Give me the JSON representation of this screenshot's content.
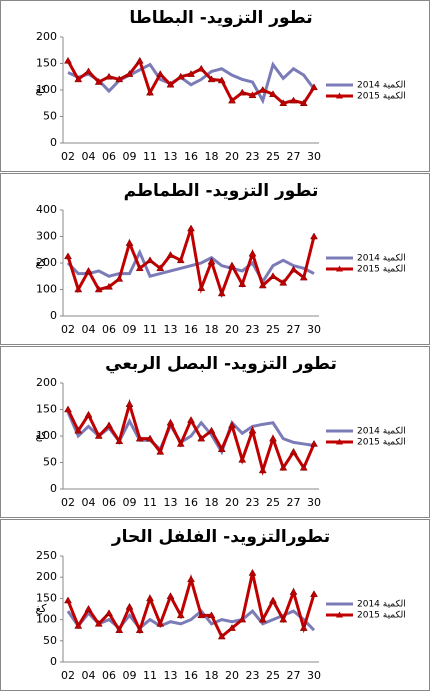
{
  "chart_data": [
    {
      "type": "line",
      "title": "تطور التزويد- البطاطا",
      "y_label": "كغ",
      "categories": [
        "02",
        null,
        "04",
        null,
        "06",
        null,
        "09",
        null,
        "11",
        null,
        "13",
        null,
        "16",
        null,
        "18",
        null,
        "20",
        null,
        "23",
        null,
        "25",
        null,
        "27",
        null,
        "30"
      ],
      "series": [
        {
          "name": "الكمية 2014",
          "color": "#7b7bb8",
          "marker": false,
          "values": [
            133,
            124,
            130,
            118,
            98,
            118,
            128,
            138,
            148,
            120,
            112,
            124,
            110,
            120,
            135,
            140,
            128,
            120,
            115,
            80,
            148,
            122,
            140,
            128,
            102
          ]
        },
        {
          "name": "الكمية 2015",
          "color": "#c00000",
          "marker": true,
          "values": [
            155,
            120,
            135,
            115,
            125,
            120,
            130,
            155,
            95,
            130,
            110,
            125,
            130,
            140,
            120,
            118,
            80,
            95,
            90,
            100,
            92,
            75,
            80,
            75,
            105
          ]
        }
      ],
      "ylim": [
        0,
        200
      ],
      "yticks": [
        0,
        50,
        100,
        150,
        200
      ],
      "legend": "right"
    },
    {
      "type": "line",
      "title": "تطور التزويد- الطماطم",
      "y_label": "كغ",
      "categories": [
        "02",
        null,
        "04",
        null,
        "06",
        null,
        "09",
        null,
        "11",
        null,
        "13",
        null,
        "16",
        null,
        "18",
        null,
        "20",
        null,
        "23",
        null,
        "25",
        null,
        "27",
        null,
        "30"
      ],
      "series": [
        {
          "name": "الكمية 2014",
          "color": "#7b7bb8",
          "marker": false,
          "values": [
            200,
            160,
            160,
            170,
            150,
            160,
            160,
            240,
            150,
            160,
            170,
            180,
            190,
            200,
            220,
            190,
            180,
            170,
            200,
            130,
            190,
            210,
            190,
            180,
            160
          ]
        },
        {
          "name": "الكمية 2015",
          "color": "#c00000",
          "marker": true,
          "values": [
            225,
            100,
            170,
            100,
            110,
            140,
            275,
            180,
            210,
            180,
            230,
            210,
            330,
            105,
            205,
            85,
            190,
            120,
            235,
            115,
            150,
            125,
            175,
            145,
            300
          ]
        }
      ],
      "ylim": [
        0,
        400
      ],
      "yticks": [
        0,
        100,
        200,
        300,
        400
      ],
      "legend": "right"
    },
    {
      "type": "line",
      "title": "تطور التزويد- البصل الربعي",
      "y_label": "كغ",
      "categories": [
        "02",
        null,
        "04",
        null,
        "06",
        null,
        "09",
        null,
        "11",
        null,
        "13",
        null,
        "16",
        null,
        "18",
        null,
        "20",
        null,
        "23",
        null,
        "25",
        null,
        "27",
        null,
        "30"
      ],
      "series": [
        {
          "name": "الكمية 2014",
          "color": "#7b7bb8",
          "marker": false,
          "values": [
            145,
            100,
            118,
            100,
            115,
            90,
            128,
            92,
            92,
            75,
            120,
            88,
            100,
            125,
            102,
            70,
            125,
            105,
            118,
            122,
            125,
            95,
            88,
            85,
            82
          ]
        },
        {
          "name": "الكمية 2015",
          "color": "#c00000",
          "marker": true,
          "values": [
            150,
            110,
            140,
            100,
            120,
            90,
            160,
            95,
            95,
            70,
            125,
            85,
            130,
            95,
            110,
            75,
            120,
            55,
            110,
            35,
            95,
            40,
            70,
            40,
            85
          ]
        }
      ],
      "ylim": [
        0,
        200
      ],
      "yticks": [
        0,
        50,
        100,
        150,
        200
      ],
      "legend": "right"
    },
    {
      "type": "line",
      "title": "تطورالتزويد- الفلفل الحار",
      "y_label": "كغ",
      "categories": [
        "02",
        null,
        "04",
        null,
        "06",
        null,
        "09",
        null,
        "11",
        null,
        "13",
        null,
        "16",
        null,
        "18",
        null,
        "20",
        null,
        "23",
        null,
        "25",
        null,
        "27",
        null,
        "30"
      ],
      "series": [
        {
          "name": "الكمية 2014",
          "color": "#7b7bb8",
          "marker": false,
          "values": [
            120,
            85,
            115,
            90,
            100,
            80,
            110,
            80,
            100,
            85,
            95,
            90,
            100,
            120,
            90,
            100,
            95,
            100,
            120,
            90,
            100,
            110,
            120,
            100,
            75
          ]
        },
        {
          "name": "الكمية 2015",
          "color": "#c00000",
          "marker": true,
          "values": [
            145,
            85,
            125,
            90,
            115,
            75,
            130,
            75,
            150,
            90,
            155,
            110,
            195,
            110,
            110,
            60,
            80,
            100,
            210,
            100,
            145,
            100,
            165,
            80,
            160
          ]
        }
      ],
      "ylim": [
        0,
        250
      ],
      "yticks": [
        0,
        50,
        100,
        150,
        200,
        250
      ],
      "legend": "right"
    }
  ]
}
